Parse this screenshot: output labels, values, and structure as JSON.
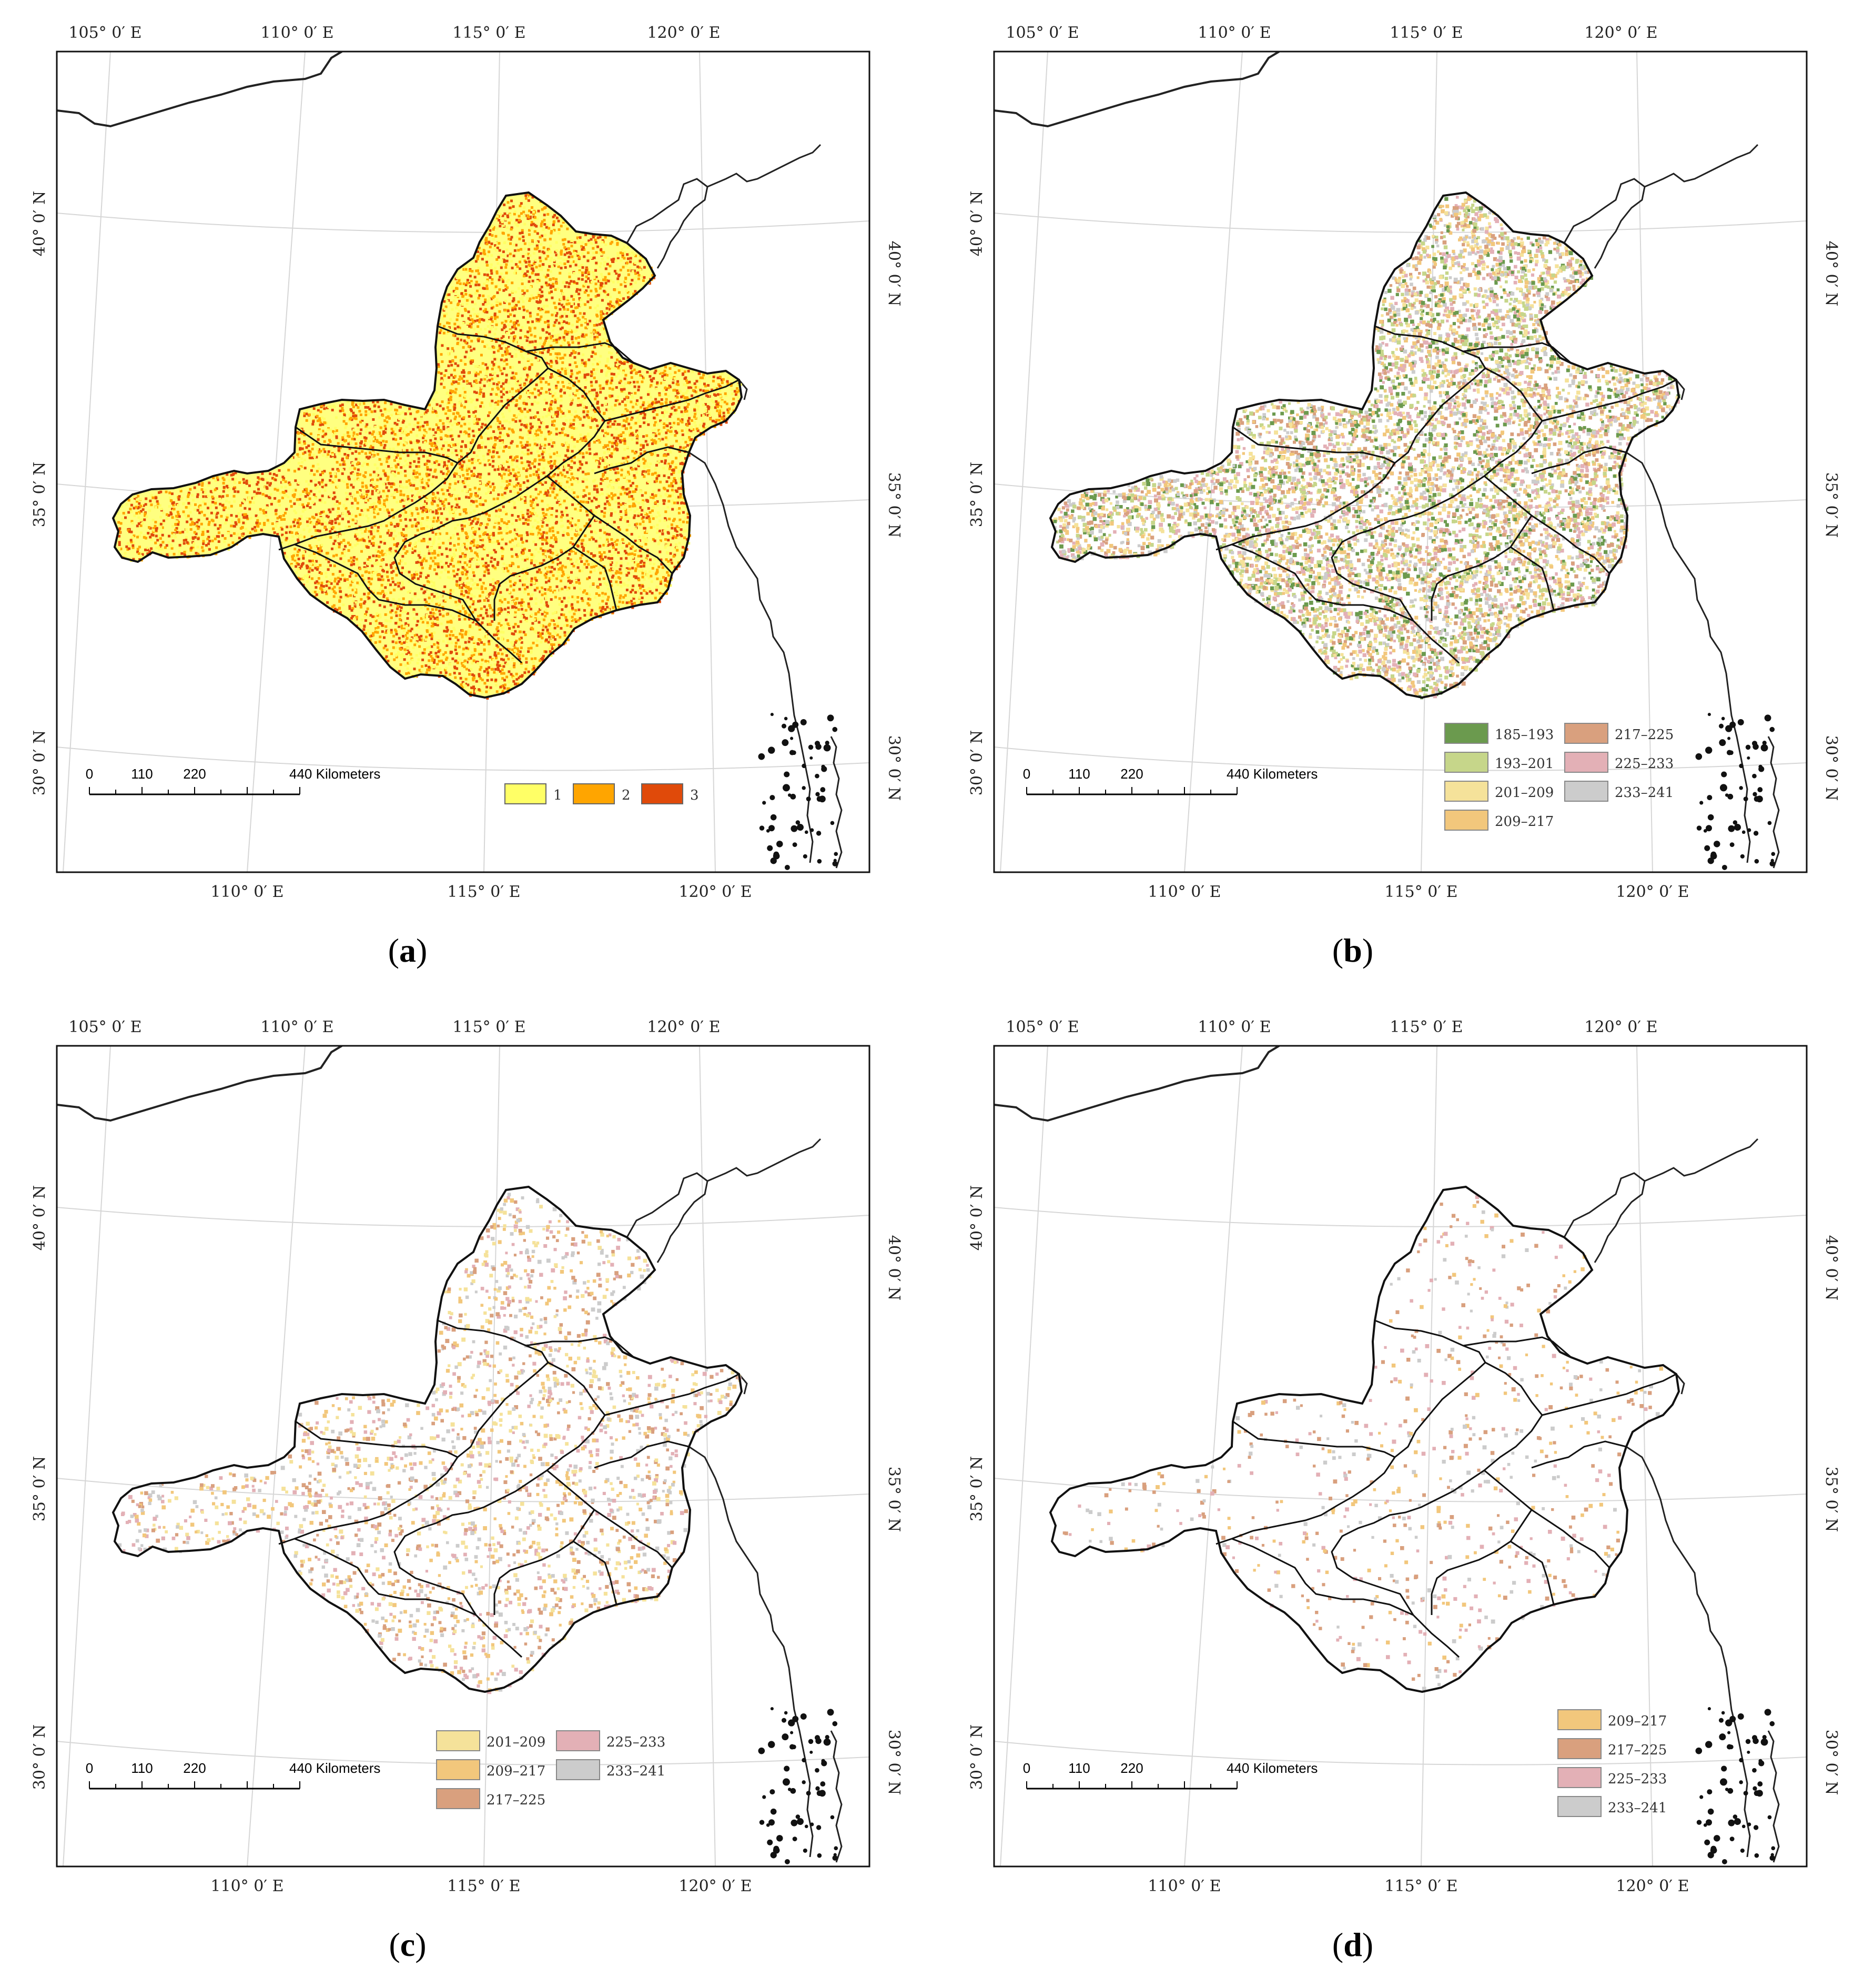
{
  "panels": [
    {
      "id": "a",
      "label_text": "(a)",
      "label_letter": "a",
      "legend": [
        {
          "label": "1",
          "color": "#ffff66"
        },
        {
          "label": "2",
          "color": "#ffa500"
        },
        {
          "label": "3",
          "color": "#e04a0a"
        }
      ],
      "density": 1.0
    },
    {
      "id": "b",
      "label_text": "(b)",
      "label_letter": "b",
      "legend": [
        {
          "label": "185–193",
          "color": "#6b9a4e"
        },
        {
          "label": "193–201",
          "color": "#c6d68a"
        },
        {
          "label": "201–209",
          "color": "#f5e29a"
        },
        {
          "label": "209–217",
          "color": "#f2c77c"
        },
        {
          "label": "217–225",
          "color": "#d9a07e"
        },
        {
          "label": "225–233",
          "color": "#e3b0b6"
        },
        {
          "label": "233–241",
          "color": "#cccccc"
        }
      ],
      "density": 0.85
    },
    {
      "id": "c",
      "label_text": "(c)",
      "label_letter": "c",
      "legend": [
        {
          "label": "201–209",
          "color": "#f5e29a"
        },
        {
          "label": "209–217",
          "color": "#f2c77c"
        },
        {
          "label": "217–225",
          "color": "#d9a07e"
        },
        {
          "label": "225–233",
          "color": "#e3b0b6"
        },
        {
          "label": "233–241",
          "color": "#cccccc"
        }
      ],
      "density": 0.25
    },
    {
      "id": "d",
      "label_text": "(d)",
      "label_letter": "d",
      "legend": [
        {
          "label": "209–217",
          "color": "#f2c77c"
        },
        {
          "label": "217–225",
          "color": "#d9a07e"
        },
        {
          "label": "225–233",
          "color": "#e3b0b6"
        },
        {
          "label": "233–241",
          "color": "#cccccc"
        }
      ],
      "density": 0.08
    }
  ],
  "axes": {
    "top_lon": [
      "105° 0′ E",
      "110° 0′ E",
      "115° 0′ E",
      "120° 0′ E"
    ],
    "bottom_lon": [
      "110° 0′ E",
      "115° 0′ E",
      "120° 0′ E"
    ],
    "left_lat": [
      "40° 0′ N",
      "35° 0′ N",
      "30° 0′ N"
    ],
    "right_lat": [
      "40° 0′ N",
      "35° 0′ N",
      "30° 0′ N"
    ]
  },
  "scale_bar": {
    "ticks": [
      "0",
      "110",
      "220",
      "440 Kilometers"
    ]
  }
}
